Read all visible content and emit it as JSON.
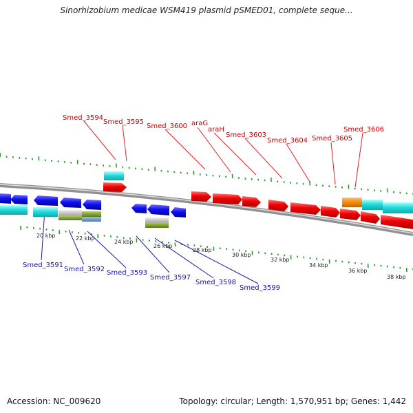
{
  "title": "Sinorhizobium medicae WSM419 plasmid pSMED01, complete seque...",
  "accession": "Accession: NC_009620",
  "stats": "Topology: circular; Length: 1,570,951 bp; Genes: 1,442",
  "colors": {
    "red": "#ee0000",
    "blue": "#1010ee",
    "cyan": "#22dddd",
    "orange": "#f5900f",
    "olive": "#7a9a2a",
    "gray": "#b8b8b8",
    "backbone": "#909090",
    "tick": "#2a9a2a",
    "label_top": "#cc0000",
    "label_bottom": "#1111bb"
  },
  "kbp_labels": [
    "20 kbp",
    "22 kbp",
    "24 kbp",
    "26 kbp",
    "28 kbp",
    "30 kbp",
    "32 kbp",
    "34 kbp",
    "36 kbp",
    "38 kbp"
  ],
  "gene_labels_top": [
    "Smed_3594",
    "Smed_3595",
    "Smed_3600",
    "araG",
    "araH",
    "Smed_3603",
    "Smed_3604",
    "Smed_3605",
    "Smed_3606"
  ],
  "gene_labels_bottom": [
    "Smed_3591",
    "Smed_3592",
    "Smed_3593",
    "Smed_3597",
    "Smed_3598",
    "Smed_3599"
  ]
}
